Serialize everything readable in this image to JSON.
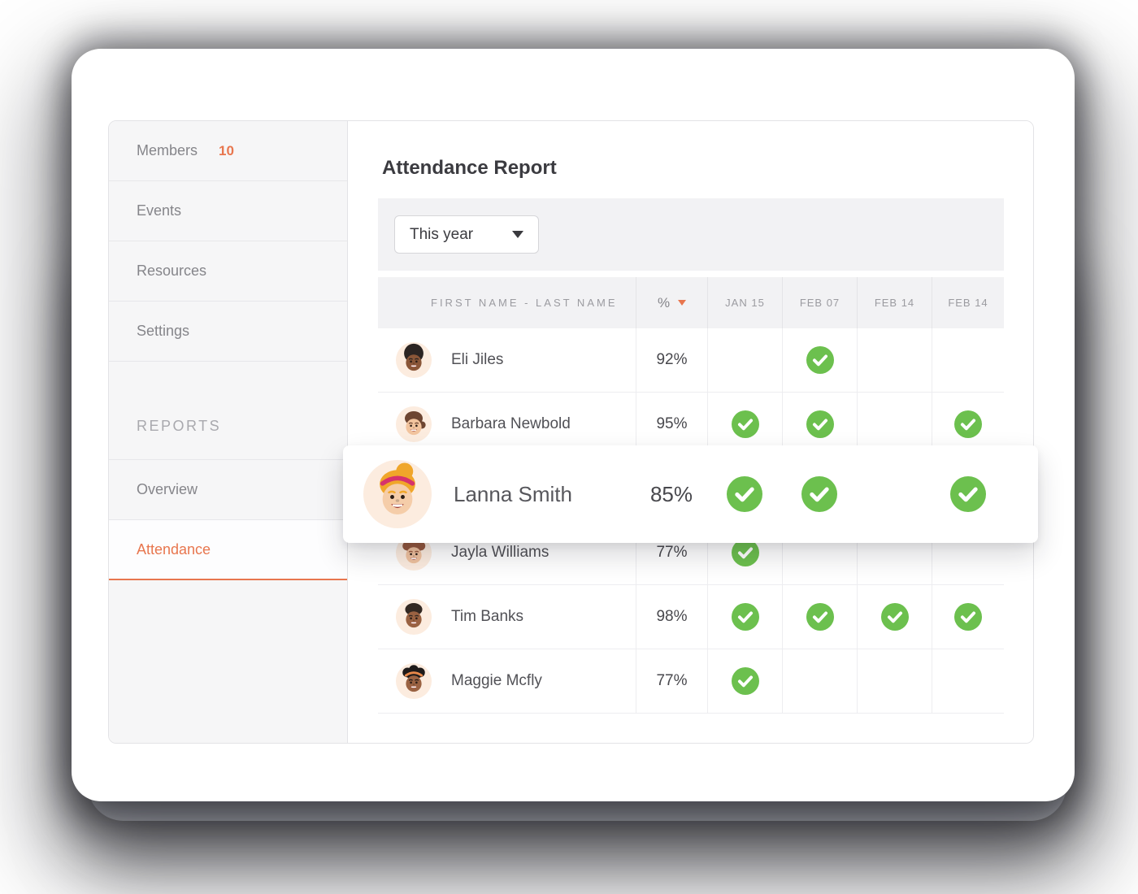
{
  "colors": {
    "accent": "#E8764E",
    "green": "#6CC04E",
    "avatar_bg": "#FCECDF",
    "sidebar_bg": "#F6F6F7",
    "panel_bg": "#F2F2F4"
  },
  "sidebar": {
    "items": [
      {
        "label": "Members",
        "badge": "10"
      },
      {
        "label": "Events"
      },
      {
        "label": "Resources"
      },
      {
        "label": "Settings"
      }
    ],
    "section_label": "REPORTS",
    "report_items": [
      {
        "label": "Overview",
        "active": false
      },
      {
        "label": "Attendance",
        "active": true
      }
    ]
  },
  "main": {
    "title": "Attendance Report",
    "filter": {
      "selected": "This year"
    },
    "table": {
      "columns": [
        "FIRST NAME - LAST NAME",
        "%",
        "JAN 15",
        "FEB 07",
        "FEB 14",
        "FEB 14"
      ],
      "rows": [
        {
          "name": "Eli Jiles",
          "percent": "92%",
          "attendance": [
            false,
            true,
            false,
            false
          ],
          "highlighted": false,
          "avatar": {
            "style": "afro",
            "skin": "#8A5638",
            "hair": "#2B2422"
          }
        },
        {
          "name": "Barbara Newbold",
          "percent": "95%",
          "attendance": [
            true,
            true,
            false,
            true
          ],
          "highlighted": false,
          "avatar": {
            "style": "side",
            "skin": "#F2C49E",
            "hair": "#6D4531"
          }
        },
        {
          "name": "Lanna Smith",
          "percent": "85%",
          "attendance": [
            true,
            true,
            false,
            true
          ],
          "highlighted": true,
          "avatar": {
            "style": "bun",
            "skin": "#F5CDA9",
            "hair": "#F0A62A",
            "band": "#D6336C"
          }
        },
        {
          "name": "Jayla Williams",
          "percent": "77%",
          "attendance": [
            true,
            false,
            false,
            false
          ],
          "highlighted": false,
          "avatar": {
            "style": "curly",
            "skin": "#EFC19E",
            "hair": "#95573D"
          }
        },
        {
          "name": "Tim Banks",
          "percent": "98%",
          "attendance": [
            true,
            true,
            true,
            true
          ],
          "highlighted": false,
          "avatar": {
            "style": "short",
            "skin": "#9A6242",
            "hair": "#332822"
          }
        },
        {
          "name": "Maggie Mcfly",
          "percent": "77%",
          "attendance": [
            true,
            false,
            false,
            false
          ],
          "highlighted": false,
          "avatar": {
            "style": "puffs",
            "skin": "#9A6242",
            "hair": "#1F1B1A",
            "band": "#E8884A"
          }
        }
      ]
    }
  }
}
